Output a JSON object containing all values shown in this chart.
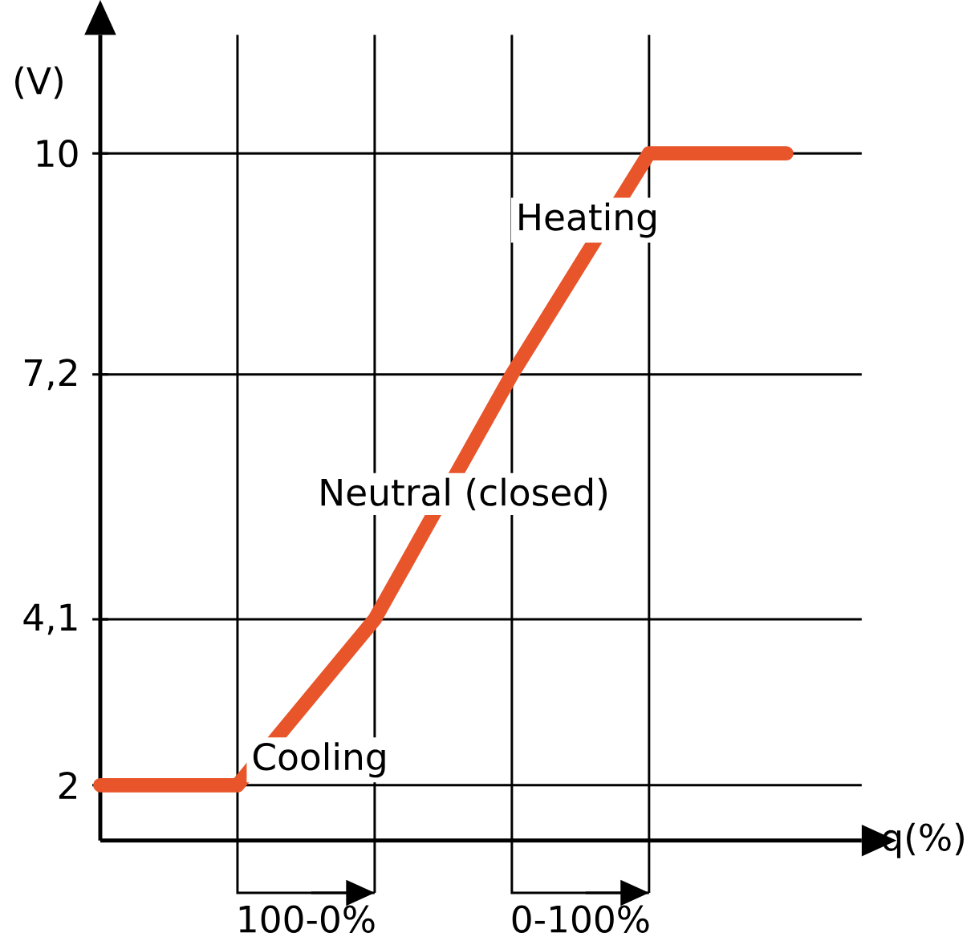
{
  "chart_data": {
    "type": "line",
    "ylabel": "(V)",
    "xlabel": "q(%)",
    "categories": [
      null,
      null,
      null,
      null,
      null,
      null
    ],
    "series": [
      {
        "color": "#e8552a",
        "values": [
          2,
          2,
          4.1,
          7.2,
          10,
          10
        ]
      }
    ],
    "ylim": [
      1.3,
      11.5
    ],
    "yticks": [
      {
        "value": 2,
        "label": "2"
      },
      {
        "value": 4.1,
        "label": "4,1"
      },
      {
        "value": 7.2,
        "label": "7,2"
      },
      {
        "value": 10,
        "label": "10"
      }
    ],
    "grid": true,
    "tick_labels": "y",
    "line_style": "solid",
    "annotations": [
      "Cooling",
      "Neutral (closed)",
      "Heating",
      "100-0%",
      "0-100%"
    ]
  }
}
